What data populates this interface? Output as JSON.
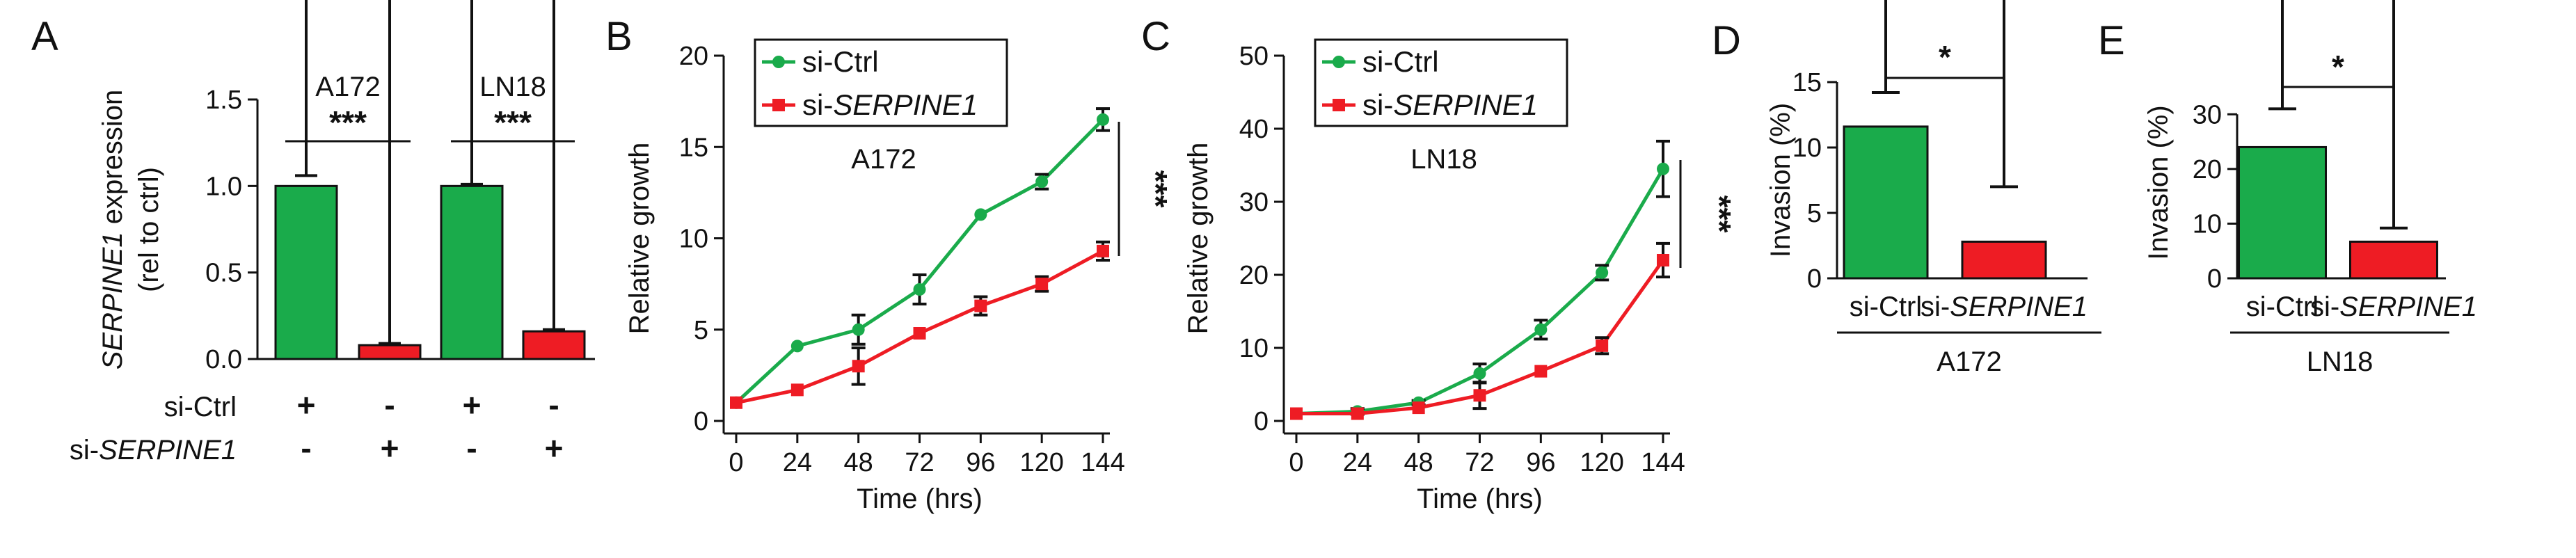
{
  "colors": {
    "green": "#1aab4b",
    "red": "#ee1c24",
    "axis": "#111111"
  },
  "chart_data": [
    {
      "panel": "A",
      "type": "bar",
      "ylabel_italic": "SERPINE1",
      "ylabel_rest": " expression",
      "ylabel_line2": "(rel to ctrl)",
      "ylim": [
        0,
        1.5
      ],
      "yticks": [
        "0.0",
        "0.5",
        "1.0",
        "1.5"
      ],
      "ytick_values": [
        0,
        0.5,
        1.0,
        1.5
      ],
      "groups": [
        {
          "label": "A172",
          "sig": "***"
        },
        {
          "label": "LN18",
          "sig": "***"
        }
      ],
      "bars": [
        {
          "group": "A172",
          "series": "si-Ctrl",
          "value": 1.0,
          "error": 0.06,
          "color": "#1aab4b"
        },
        {
          "group": "A172",
          "series": "si-SERPINE1",
          "value": 0.08,
          "error": 0.01,
          "color": "#ee1c24"
        },
        {
          "group": "LN18",
          "series": "si-Ctrl",
          "value": 1.0,
          "error": 0.01,
          "color": "#1aab4b"
        },
        {
          "group": "LN18",
          "series": "si-SERPINE1",
          "value": 0.16,
          "error": 0.01,
          "color": "#ee1c24"
        }
      ],
      "condition_rows": [
        {
          "label_plain": "si-Ctrl",
          "label_italic": "",
          "signs": [
            "+",
            "-",
            "+",
            "-"
          ]
        },
        {
          "label_plain": "si-",
          "label_italic": "SERPINE1",
          "signs": [
            "-",
            "+",
            "-",
            "+"
          ]
        }
      ]
    },
    {
      "panel": "B",
      "type": "line",
      "annotation": "A172",
      "xlabel": "Time (hrs)",
      "ylabel": "Relative growth",
      "x": [
        0,
        24,
        48,
        72,
        96,
        120,
        144
      ],
      "xlim": [
        0,
        144
      ],
      "ylim": [
        0,
        20
      ],
      "yticks": [
        0,
        5,
        10,
        15,
        20
      ],
      "sig": "***",
      "legend": [
        {
          "plain": "si-Ctrl",
          "italic": ""
        },
        {
          "plain": "si-",
          "italic": "SERPINE1"
        }
      ],
      "series": [
        {
          "name": "si-Ctrl",
          "color": "#1aab4b",
          "marker": "circle",
          "values": [
            1.0,
            4.1,
            5.0,
            7.2,
            11.3,
            13.1,
            16.5
          ],
          "errors": [
            0.1,
            0.1,
            0.8,
            0.8,
            0.1,
            0.4,
            0.6
          ]
        },
        {
          "name": "si-SERPINE1",
          "color": "#ee1c24",
          "marker": "square",
          "values": [
            1.0,
            1.7,
            3.0,
            4.8,
            6.3,
            7.5,
            9.3
          ],
          "errors": [
            0.1,
            0.1,
            1.0,
            0.1,
            0.5,
            0.4,
            0.5
          ]
        }
      ]
    },
    {
      "panel": "C",
      "type": "line",
      "annotation": "LN18",
      "xlabel": "Time (hrs)",
      "ylabel": "Relative growth",
      "x": [
        0,
        24,
        48,
        72,
        96,
        120,
        144
      ],
      "xlim": [
        0,
        144
      ],
      "ylim": [
        0,
        50
      ],
      "yticks": [
        0,
        10,
        20,
        30,
        40,
        50
      ],
      "sig": "***",
      "legend": [
        {
          "plain": "si-Ctrl",
          "italic": ""
        },
        {
          "plain": "si-",
          "italic": "SERPINE1"
        }
      ],
      "series": [
        {
          "name": "si-Ctrl",
          "color": "#1aab4b",
          "marker": "circle",
          "values": [
            1.0,
            1.3,
            2.5,
            6.5,
            12.5,
            20.3,
            34.5
          ],
          "errors": [
            0.1,
            0.4,
            0.3,
            1.3,
            1.3,
            1.0,
            3.8
          ]
        },
        {
          "name": "si-SERPINE1",
          "color": "#ee1c24",
          "marker": "square",
          "values": [
            1.0,
            1.0,
            1.8,
            3.5,
            6.8,
            10.3,
            22.0
          ],
          "errors": [
            0.1,
            0.1,
            0.1,
            1.8,
            0.1,
            1.1,
            2.3
          ]
        }
      ]
    },
    {
      "panel": "D",
      "type": "bar",
      "ylabel": "Invasion (%)",
      "ylim": [
        0,
        15
      ],
      "yticks": [
        0,
        5,
        10,
        15
      ],
      "categories_plain": [
        "si-Ctrl",
        "si-"
      ],
      "categories_italic": [
        "",
        "SERPINE1"
      ],
      "values": [
        11.6,
        2.8
      ],
      "errors": [
        2.6,
        4.2
      ],
      "colors": [
        "#1aab4b",
        "#ee1c24"
      ],
      "sig": "*",
      "group_label": "A172"
    },
    {
      "panel": "E",
      "type": "bar",
      "ylabel": "Invasion (%)",
      "ylim": [
        0,
        35
      ],
      "yticks": [
        0,
        10,
        20,
        30
      ],
      "categories_plain": [
        "si-Ctrl",
        "si-"
      ],
      "categories_italic": [
        "",
        "SERPINE1"
      ],
      "values": [
        24.0,
        6.7
      ],
      "errors": [
        7.0,
        2.5
      ],
      "colors": [
        "#1aab4b",
        "#ee1c24"
      ],
      "sig": "*",
      "group_label": "LN18"
    }
  ]
}
